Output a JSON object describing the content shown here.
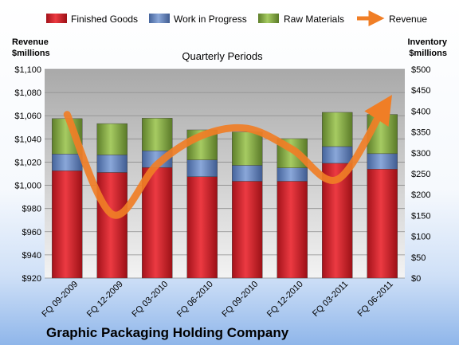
{
  "chart_data": {
    "type": "bar",
    "title": "Quarterly Periods",
    "company": "Graphic Packaging Holding Company",
    "left_axis_title": [
      "Revenue",
      "$millions"
    ],
    "right_axis_title": [
      "Inventory",
      "$millions"
    ],
    "categories": [
      "FQ 09-2009",
      "FQ 12-2009",
      "FQ 03-2010",
      "FQ 06-2010",
      "FQ 09-2010",
      "FQ 12-2010",
      "FQ 03-2011",
      "FQ 06-2011"
    ],
    "stacked": true,
    "series": [
      {
        "name": "Finished Goods",
        "axis": "right",
        "color": "#e3202b",
        "values": [
          257,
          253,
          265,
          243,
          232,
          232,
          275,
          261
        ]
      },
      {
        "name": "Work in Progress",
        "axis": "right",
        "color": "#6b8cc6",
        "values": [
          40,
          42,
          40,
          40,
          38,
          32,
          40,
          37
        ]
      },
      {
        "name": "Raw Materials",
        "axis": "right",
        "color": "#8bb34c",
        "values": [
          85,
          75,
          78,
          72,
          80,
          70,
          82,
          94
        ]
      },
      {
        "name": "Revenue",
        "axis": "left",
        "type": "line",
        "color": "#f07e26",
        "values": [
          1061,
          975,
          1018,
          1043,
          1049,
          1031,
          1005,
          1065
        ]
      }
    ],
    "left_ylim": [
      920,
      1100
    ],
    "left_ticks": [
      "$920",
      "$940",
      "$960",
      "$980",
      "$1,000",
      "$1,020",
      "$1,040",
      "$1,060",
      "$1,080",
      "$1,100"
    ],
    "right_ylim": [
      0,
      500
    ],
    "right_ticks": [
      "$0",
      "$50",
      "$100",
      "$150",
      "$200",
      "$250",
      "$300",
      "$350",
      "$400",
      "$450",
      "$500"
    ],
    "grid": true,
    "legend_position": "top"
  }
}
